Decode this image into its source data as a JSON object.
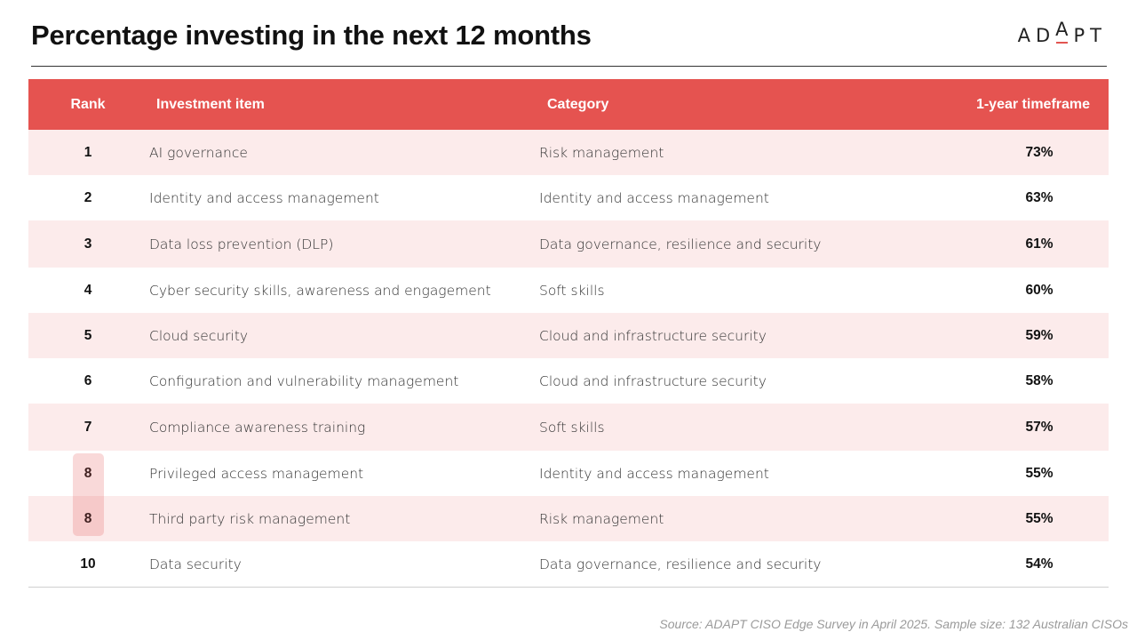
{
  "title": "Percentage investing in the next 12 months",
  "logo": {
    "text_before": "AD",
    "text_raised": "A",
    "text_after": "PT"
  },
  "table": {
    "columns": [
      "Rank",
      "Investment item",
      "Category",
      "1-year timeframe"
    ],
    "rows": [
      {
        "rank": "1",
        "item": "AI governance",
        "category": "Risk management",
        "pct": "73%"
      },
      {
        "rank": "2",
        "item": "Identity and access management",
        "category": "Identity and access management",
        "pct": "63%"
      },
      {
        "rank": "3",
        "item": "Data loss prevention (DLP)",
        "category": "Data governance, resilience and security",
        "pct": "61%"
      },
      {
        "rank": "4",
        "item": "Cyber security skills, awareness and engagement",
        "category": "Soft skills",
        "pct": "60%"
      },
      {
        "rank": "5",
        "item": "Cloud security",
        "category": "Cloud and infrastructure security",
        "pct": "59%"
      },
      {
        "rank": "6",
        "item": "Configuration and vulnerability management",
        "category": "Cloud and infrastructure security",
        "pct": "58%"
      },
      {
        "rank": "7",
        "item": "Compliance awareness training",
        "category": "Soft skills",
        "pct": "57%"
      },
      {
        "rank": "8",
        "item": "Privileged access management",
        "category": "Identity and access management",
        "pct": "55%"
      },
      {
        "rank": "8",
        "item": "Third party risk management",
        "category": "Risk management",
        "pct": "55%"
      },
      {
        "rank": "10",
        "item": "Data security",
        "category": "Data governance, resilience and security",
        "pct": "54%"
      }
    ]
  },
  "source": "Source: ADAPT CISO Edge Survey in April 2025. Sample size: 132 Australian CISOs",
  "colors": {
    "accent": "#e55350",
    "stripe": "#fcebeb"
  }
}
